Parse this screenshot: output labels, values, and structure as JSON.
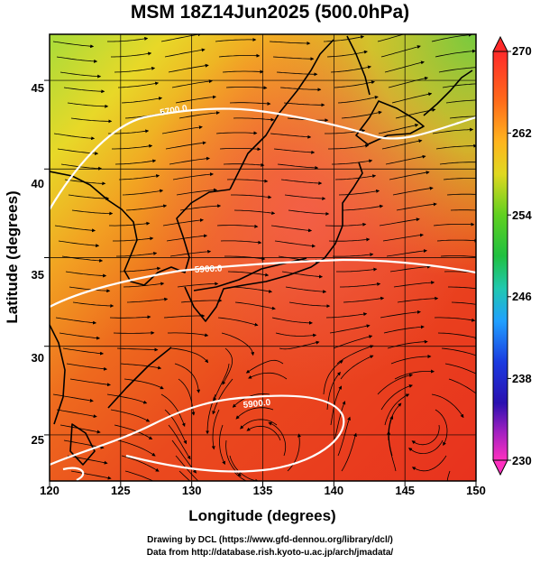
{
  "title": "MSM 18Z14Jun2025 (500.0hPa)",
  "map": {
    "xlabel": "Longitude (degrees)",
    "ylabel": "Latitude  (degrees)",
    "lon_range": [
      120,
      150
    ],
    "lat_range": [
      22.4,
      47.6
    ],
    "lon_ticks": [
      "120",
      "125",
      "130",
      "135",
      "140",
      "145",
      "150"
    ],
    "lat_ticks": [
      "25",
      "30",
      "35",
      "40",
      "45"
    ],
    "field": "temperature (K) shaded, wind streamlines, geopotential height contours",
    "contours": [
      {
        "label": "5700.0",
        "color": "#ffffff"
      },
      {
        "label": "5900.0",
        "color": "#ffffff"
      },
      {
        "label": "5900.0",
        "color": "#ffffff"
      }
    ]
  },
  "colorbar": {
    "min": 230,
    "max": 270,
    "tick_labels": [
      "270",
      "262",
      "254",
      "246",
      "238",
      "230"
    ],
    "colors": [
      "#ff2a2a",
      "#ff7a1a",
      "#ffc81e",
      "#a0e020",
      "#20c030",
      "#1ec8a0",
      "#1e90ff",
      "#1a1ad0",
      "#8020c0",
      "#ff30c0"
    ]
  },
  "credits": [
    "Drawing by DCL (https://www.gfd-dennou.org/library/dcl/)",
    "Data from http://database.rish.kyoto-u.ac.jp/arch/jmadata/"
  ]
}
